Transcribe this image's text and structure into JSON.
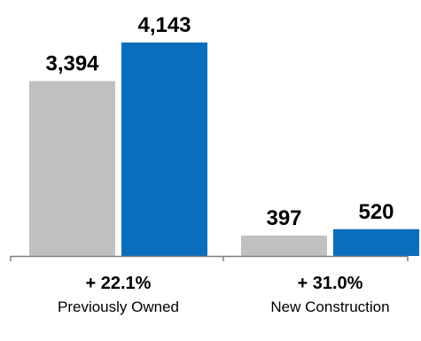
{
  "chart_data": {
    "type": "bar",
    "categories": [
      "Previously Owned",
      "New Construction"
    ],
    "category_changes": [
      "+ 22.1%",
      "+ 31.0%"
    ],
    "series": [
      {
        "values": [
          3394,
          397
        ],
        "value_labels": [
          "3,394",
          "397"
        ],
        "color": "#c0c0c0"
      },
      {
        "values": [
          4143,
          520
        ],
        "value_labels": [
          "4,143",
          "520"
        ],
        "color": "#0a6ebd"
      }
    ],
    "ylim": [
      0,
      4143
    ],
    "grid": false,
    "legend": "none",
    "axis_color": "#808080"
  }
}
